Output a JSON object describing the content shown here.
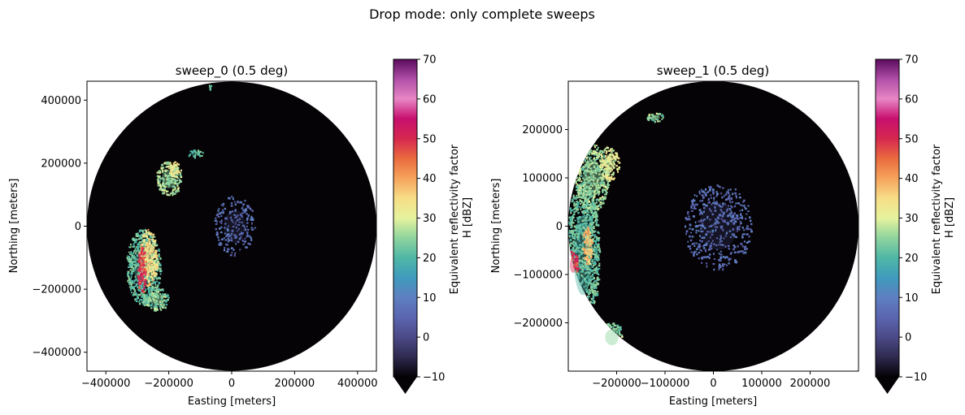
{
  "figure": {
    "suptitle": "Drop mode: only complete sweeps"
  },
  "colorbar": {
    "colormap": "spectral-like",
    "label_line1": "Equivalent reflectivity factor",
    "label_line2": "H [dBZ]",
    "ticks": [
      -10,
      0,
      10,
      20,
      30,
      40,
      50,
      60,
      70
    ],
    "range": [
      -10,
      70
    ],
    "extend": "min",
    "stops": [
      {
        "v": -10,
        "c": "#060306"
      },
      {
        "v": -5,
        "c": "#2f2a4f"
      },
      {
        "v": 0,
        "c": "#4c4a88"
      },
      {
        "v": 5,
        "c": "#5b66b0"
      },
      {
        "v": 10,
        "c": "#5e7fc1"
      },
      {
        "v": 15,
        "c": "#3f9bbd"
      },
      {
        "v": 20,
        "c": "#4fb7a6"
      },
      {
        "v": 25,
        "c": "#8fd49e"
      },
      {
        "v": 30,
        "c": "#e6f39d"
      },
      {
        "v": 35,
        "c": "#f7dd87"
      },
      {
        "v": 40,
        "c": "#f6a45c"
      },
      {
        "v": 45,
        "c": "#ea6b3f"
      },
      {
        "v": 50,
        "c": "#d6284f"
      },
      {
        "v": 55,
        "c": "#c70f6e"
      },
      {
        "v": 60,
        "c": "#e886c4"
      },
      {
        "v": 65,
        "c": "#b04fa8"
      },
      {
        "v": 70,
        "c": "#5b0a5e"
      }
    ]
  },
  "chart_data": [
    {
      "type": "heatmap",
      "title": "sweep_0 (0.5 deg)",
      "xlabel": "Easting [meters]",
      "ylabel": "Northing [meters]",
      "xlim": [
        -460000,
        460000
      ],
      "ylim": [
        -460000,
        460000
      ],
      "xticks": [
        -400000,
        -200000,
        0,
        200000,
        400000
      ],
      "xtick_labels": [
        "−400000",
        "−200000",
        "0",
        "200000",
        "400000"
      ],
      "yticks": [
        -400000,
        -200000,
        0,
        200000,
        400000
      ],
      "ytick_labels": [
        "−400000",
        "−200000",
        "0",
        "200000",
        "400000"
      ],
      "radar_range_m": 460000,
      "background_dbz": -10,
      "echo_regions": [
        {
          "x": -280000,
          "y": -130000,
          "rx": 55000,
          "ry": 120000,
          "dbz": 20
        },
        {
          "x": -265000,
          "y": -100000,
          "rx": 30000,
          "ry": 90000,
          "dbz": 32
        },
        {
          "x": -285000,
          "y": -140000,
          "rx": 14000,
          "ry": 75000,
          "dbz": 47
        },
        {
          "x": -240000,
          "y": -230000,
          "rx": 40000,
          "ry": 40000,
          "dbz": 22
        },
        {
          "x": -200000,
          "y": 150000,
          "rx": 40000,
          "ry": 55000,
          "dbz": 24
        },
        {
          "x": -180000,
          "y": 180000,
          "rx": 20000,
          "ry": 25000,
          "dbz": 30
        },
        {
          "x": -115000,
          "y": 230000,
          "rx": 25000,
          "ry": 12000,
          "dbz": 20
        },
        {
          "x": 10000,
          "y": 0,
          "rx": 65000,
          "ry": 95000,
          "dbz": 4
        },
        {
          "x": -70000,
          "y": 440000,
          "rx": 6000,
          "ry": 10000,
          "dbz": 20
        }
      ]
    },
    {
      "type": "heatmap",
      "title": "sweep_1 (0.5 deg)",
      "xlabel": "Easting [meters]",
      "ylabel": "Northing [meters]",
      "xlim": [
        -300000,
        300000
      ],
      "ylim": [
        -300000,
        300000
      ],
      "xticks": [
        -200000,
        -100000,
        0,
        100000,
        200000
      ],
      "xtick_labels": [
        "−200000",
        "−100000",
        "0",
        "100000",
        "200000"
      ],
      "yticks": [
        -200000,
        -100000,
        0,
        100000,
        200000
      ],
      "ytick_labels": [
        "−200000",
        "−100000",
        "0",
        "100000",
        "200000"
      ],
      "radar_range_m": 300000,
      "background_dbz": -10,
      "echo_regions": [
        {
          "x": -270000,
          "y": -60000,
          "rx": 35000,
          "ry": 150000,
          "dbz": 20
        },
        {
          "x": -250000,
          "y": 100000,
          "rx": 35000,
          "ry": 70000,
          "dbz": 23
        },
        {
          "x": -215000,
          "y": 130000,
          "rx": 20000,
          "ry": 35000,
          "dbz": 28
        },
        {
          "x": -290000,
          "y": -80000,
          "rx": 12000,
          "ry": 30000,
          "dbz": 47
        },
        {
          "x": -260000,
          "y": -40000,
          "rx": 10000,
          "ry": 40000,
          "dbz": 35
        },
        {
          "x": -120000,
          "y": 225000,
          "rx": 18000,
          "ry": 10000,
          "dbz": 22
        },
        {
          "x": 10000,
          "y": 0,
          "rx": 70000,
          "ry": 90000,
          "dbz": 4
        },
        {
          "x": -210000,
          "y": -230000,
          "rx": 25000,
          "ry": 30000,
          "dbz": 21
        }
      ]
    }
  ]
}
